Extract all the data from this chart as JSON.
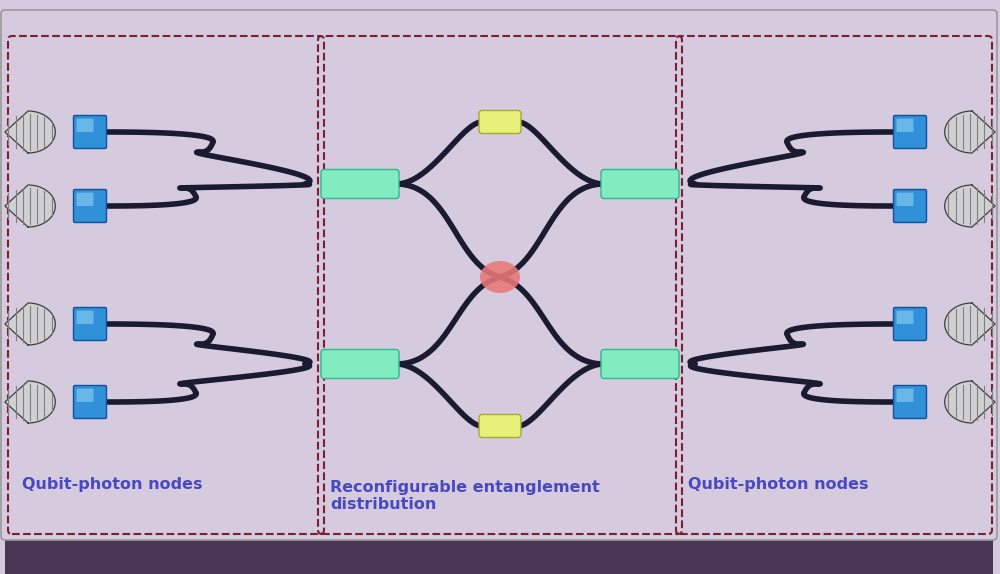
{
  "bg_color": "#d5cade",
  "border_color": "#7a2030",
  "bottom_bar_color": "#4a3555",
  "waveguide_color": "#1a1a30",
  "waveguide_lw": 4.0,
  "green_rect_color": "#80ecc0",
  "yellow_rect_color": "#e8f07a",
  "red_circle_color": "#e87878",
  "blue_sq_color1": "#3090d8",
  "blue_sq_color2": "#80c8f0",
  "cone_fill": "#d0d0d0",
  "cone_stripe": "#808080",
  "cone_edge": "#404040",
  "text_color": "#4848c0",
  "label_left": "Qubit-photon nodes",
  "label_center": "Reconfigurable entanglement\ndistribution",
  "label_right": "Qubit-photon nodes",
  "fig_width": 10.0,
  "fig_height": 5.74
}
